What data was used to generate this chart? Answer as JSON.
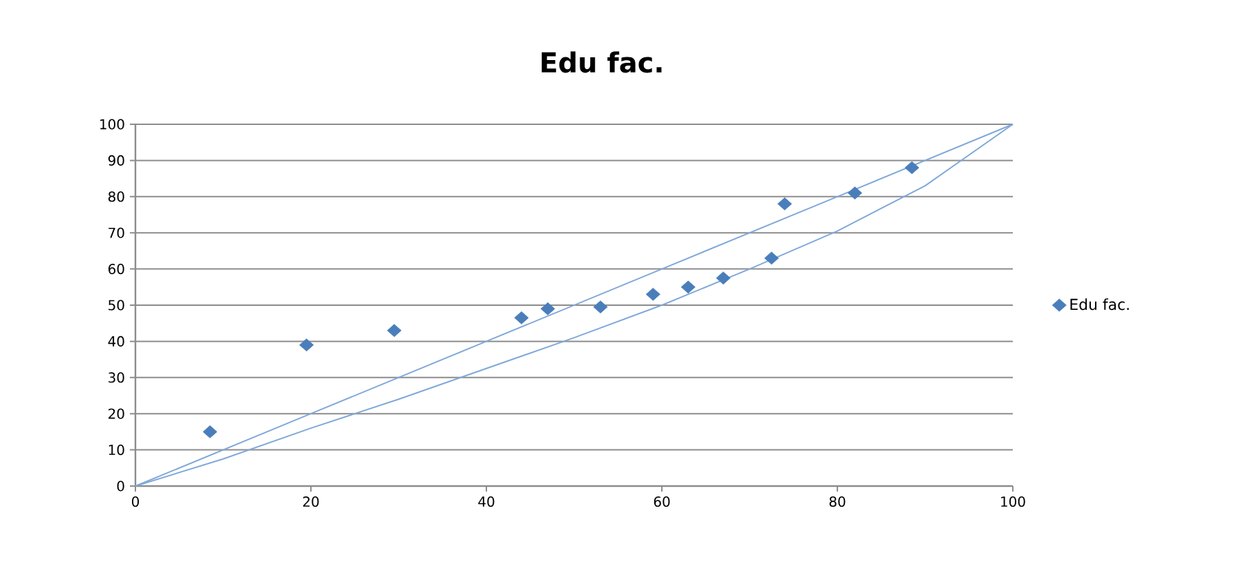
{
  "chart_data": {
    "type": "scatter",
    "title": "Edu fac.",
    "series": [
      {
        "name": "Edu fac.",
        "color": "#4a7ebb",
        "x": [
          8.5,
          19.5,
          29.5,
          44,
          47,
          53,
          59,
          63,
          67,
          72.5,
          74,
          82,
          88.5
        ],
        "values": [
          15,
          39,
          43,
          46.5,
          49,
          49.5,
          53,
          55,
          57.5,
          63,
          78,
          81,
          88
        ]
      },
      {
        "type": "line",
        "marker": "none",
        "color": "#7fa8d9",
        "x": [
          0,
          20,
          40,
          60,
          80,
          100
        ],
        "values": [
          0,
          20,
          40,
          60,
          80,
          100
        ]
      },
      {
        "type": "line",
        "marker": "none",
        "color": "#7fa8d9",
        "x": [
          0,
          10,
          20,
          30,
          40,
          50,
          60,
          70,
          80,
          90,
          100
        ],
        "values": [
          0,
          7.5,
          16,
          24,
          32.5,
          41,
          50,
          60,
          70.5,
          83,
          100
        ]
      }
    ],
    "xlim": [
      0,
      100
    ],
    "ylim": [
      0,
      100
    ],
    "xticks": [
      0,
      20,
      40,
      60,
      80,
      100
    ],
    "yticks": [
      0,
      10,
      20,
      30,
      40,
      50,
      60,
      70,
      80,
      90,
      100
    ],
    "grid": "y",
    "legend": "right",
    "marker": "diamond",
    "line_style": "solid"
  }
}
